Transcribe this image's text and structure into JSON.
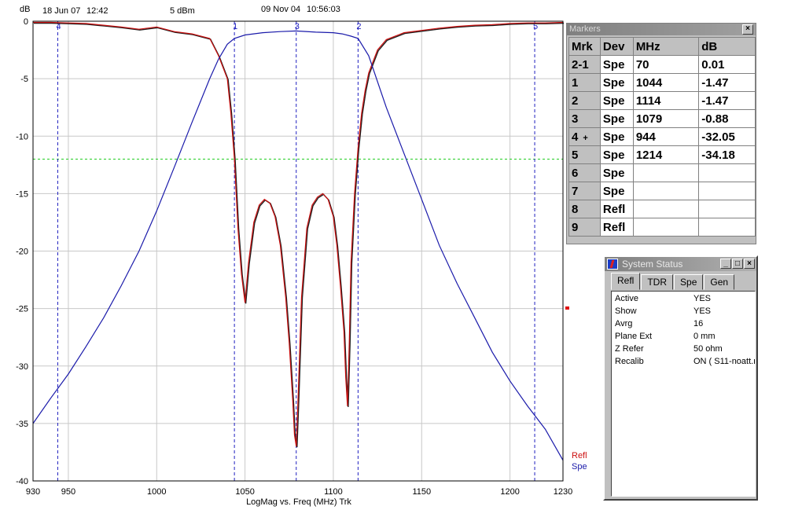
{
  "header": {
    "unit": "dB",
    "date_left": "18 Jun 07",
    "time_left": "12:42",
    "power": "5 dBm",
    "date_right": "09 Nov 04",
    "time_right": "10:56:03"
  },
  "chart_data": {
    "type": "line",
    "xlabel": "LogMag vs. Freq (MHz)  Trk",
    "ylabel": "dB",
    "xlim": [
      930,
      1230
    ],
    "ylim": [
      -40,
      0
    ],
    "x_ticks": [
      "930",
      "950",
      "1000",
      "1050",
      "1100",
      "1150",
      "1200",
      "1230"
    ],
    "y_ticks": [
      "0",
      "-5",
      "-10",
      "-15",
      "-20",
      "-25",
      "-30",
      "-35",
      "-40"
    ],
    "reference_line": {
      "value": -12,
      "color": "#22cc22"
    },
    "marker_lines": [
      {
        "label": "4",
        "x": 944
      },
      {
        "label": "1",
        "x": 1044
      },
      {
        "label": "3",
        "x": 1079
      },
      {
        "label": "2",
        "x": 1114
      },
      {
        "label": "5",
        "x": 1214
      }
    ],
    "series": [
      {
        "name": "Refl",
        "color": "#cc1010",
        "x": [
          930,
          940,
          950,
          960,
          970,
          980,
          990,
          1000,
          1010,
          1020,
          1030,
          1035,
          1040,
          1042,
          1044,
          1046,
          1048,
          1050,
          1052,
          1055,
          1058,
          1061,
          1064,
          1067,
          1070,
          1073,
          1075,
          1077,
          1078,
          1079,
          1080,
          1082,
          1085,
          1088,
          1091,
          1094,
          1097,
          1100,
          1102,
          1104,
          1106,
          1107,
          1108,
          1109,
          1110,
          1112,
          1114,
          1116,
          1118,
          1120,
          1125,
          1130,
          1140,
          1150,
          1160,
          1170,
          1180,
          1190,
          1200,
          1210,
          1220,
          1230
        ],
        "y": [
          -0.1,
          -0.1,
          -0.15,
          -0.2,
          -0.35,
          -0.5,
          -0.7,
          -0.5,
          -0.9,
          -1.1,
          -1.5,
          -3,
          -5,
          -8,
          -12,
          -18,
          -22,
          -24.5,
          -21,
          -17.5,
          -16,
          -15.5,
          -15.8,
          -17,
          -19.5,
          -24,
          -28,
          -33,
          -36,
          -37,
          -33,
          -24,
          -18,
          -16,
          -15.3,
          -15,
          -15.5,
          -17,
          -19.5,
          -23,
          -27,
          -31,
          -33.5,
          -28,
          -21,
          -15,
          -11,
          -8,
          -6,
          -4.5,
          -2.5,
          -1.6,
          -1,
          -0.8,
          -0.6,
          -0.45,
          -0.35,
          -0.3,
          -0.2,
          -0.15,
          -0.15,
          -0.1
        ]
      },
      {
        "name": "Spe",
        "color": "#1a1aaa",
        "x": [
          930,
          940,
          950,
          960,
          970,
          980,
          990,
          1000,
          1010,
          1020,
          1030,
          1035,
          1040,
          1044,
          1050,
          1060,
          1070,
          1079,
          1090,
          1100,
          1105,
          1110,
          1114,
          1120,
          1130,
          1140,
          1150,
          1160,
          1170,
          1180,
          1190,
          1200,
          1210,
          1214,
          1220,
          1230
        ],
        "y": [
          -35,
          -32.8,
          -30.7,
          -28.3,
          -25.8,
          -23,
          -20,
          -16.5,
          -12.7,
          -8.8,
          -5,
          -3.3,
          -2,
          -1.5,
          -1.2,
          -1,
          -0.9,
          -0.85,
          -0.95,
          -1,
          -1.1,
          -1.3,
          -1.5,
          -3,
          -7.5,
          -11.5,
          -15.5,
          -19.5,
          -22.8,
          -25.8,
          -28.8,
          -31.3,
          -33.5,
          -34.3,
          -35.5,
          -38.2
        ]
      }
    ],
    "legend": [
      "Refl",
      "Spe"
    ],
    "legend_position": "bottom-right"
  },
  "markers_window": {
    "title": "Markers",
    "columns": [
      "Mrk",
      "Dev",
      "MHz",
      "dB"
    ],
    "rows": [
      {
        "mrk": "2-1",
        "flag": "",
        "dev": "Spe",
        "mhz": "70",
        "db": "0.01"
      },
      {
        "mrk": "1",
        "flag": "",
        "dev": "Spe",
        "mhz": "1044",
        "db": "-1.47"
      },
      {
        "mrk": "2",
        "flag": "",
        "dev": "Spe",
        "mhz": "1114",
        "db": "-1.47"
      },
      {
        "mrk": "3",
        "flag": "",
        "dev": "Spe",
        "mhz": "1079",
        "db": "-0.88"
      },
      {
        "mrk": "4",
        "flag": "+",
        "dev": "Spe",
        "mhz": "944",
        "db": "-32.05"
      },
      {
        "mrk": "5",
        "flag": "",
        "dev": "Spe",
        "mhz": "1214",
        "db": "-34.18"
      },
      {
        "mrk": "6",
        "flag": "",
        "dev": "Spe",
        "mhz": "",
        "db": ""
      },
      {
        "mrk": "7",
        "flag": "",
        "dev": "Spe",
        "mhz": "",
        "db": ""
      },
      {
        "mrk": "8",
        "flag": "",
        "dev": "Refl",
        "mhz": "",
        "db": ""
      },
      {
        "mrk": "9",
        "flag": "",
        "dev": "Refl",
        "mhz": "",
        "db": ""
      }
    ]
  },
  "system_status": {
    "title": "System Status",
    "tabs": [
      "Refl",
      "TDR",
      "Spe",
      "Gen"
    ],
    "active_tab": "Refl",
    "rows": [
      {
        "key": "Active",
        "value": "YES"
      },
      {
        "key": "Show",
        "value": "YES"
      },
      {
        "key": "Avrg",
        "value": "16"
      },
      {
        "key": "Plane Ext",
        "value": "0 mm"
      },
      {
        "key": "Z Refer",
        "value": "50 ohm"
      },
      {
        "key": "Recalib",
        "value": "ON ( S11-noatt.r"
      }
    ]
  },
  "ref_marker_color": "#e01010",
  "icons": [
    "close-icon",
    "minimize-icon",
    "maximize-icon",
    "app-icon"
  ]
}
